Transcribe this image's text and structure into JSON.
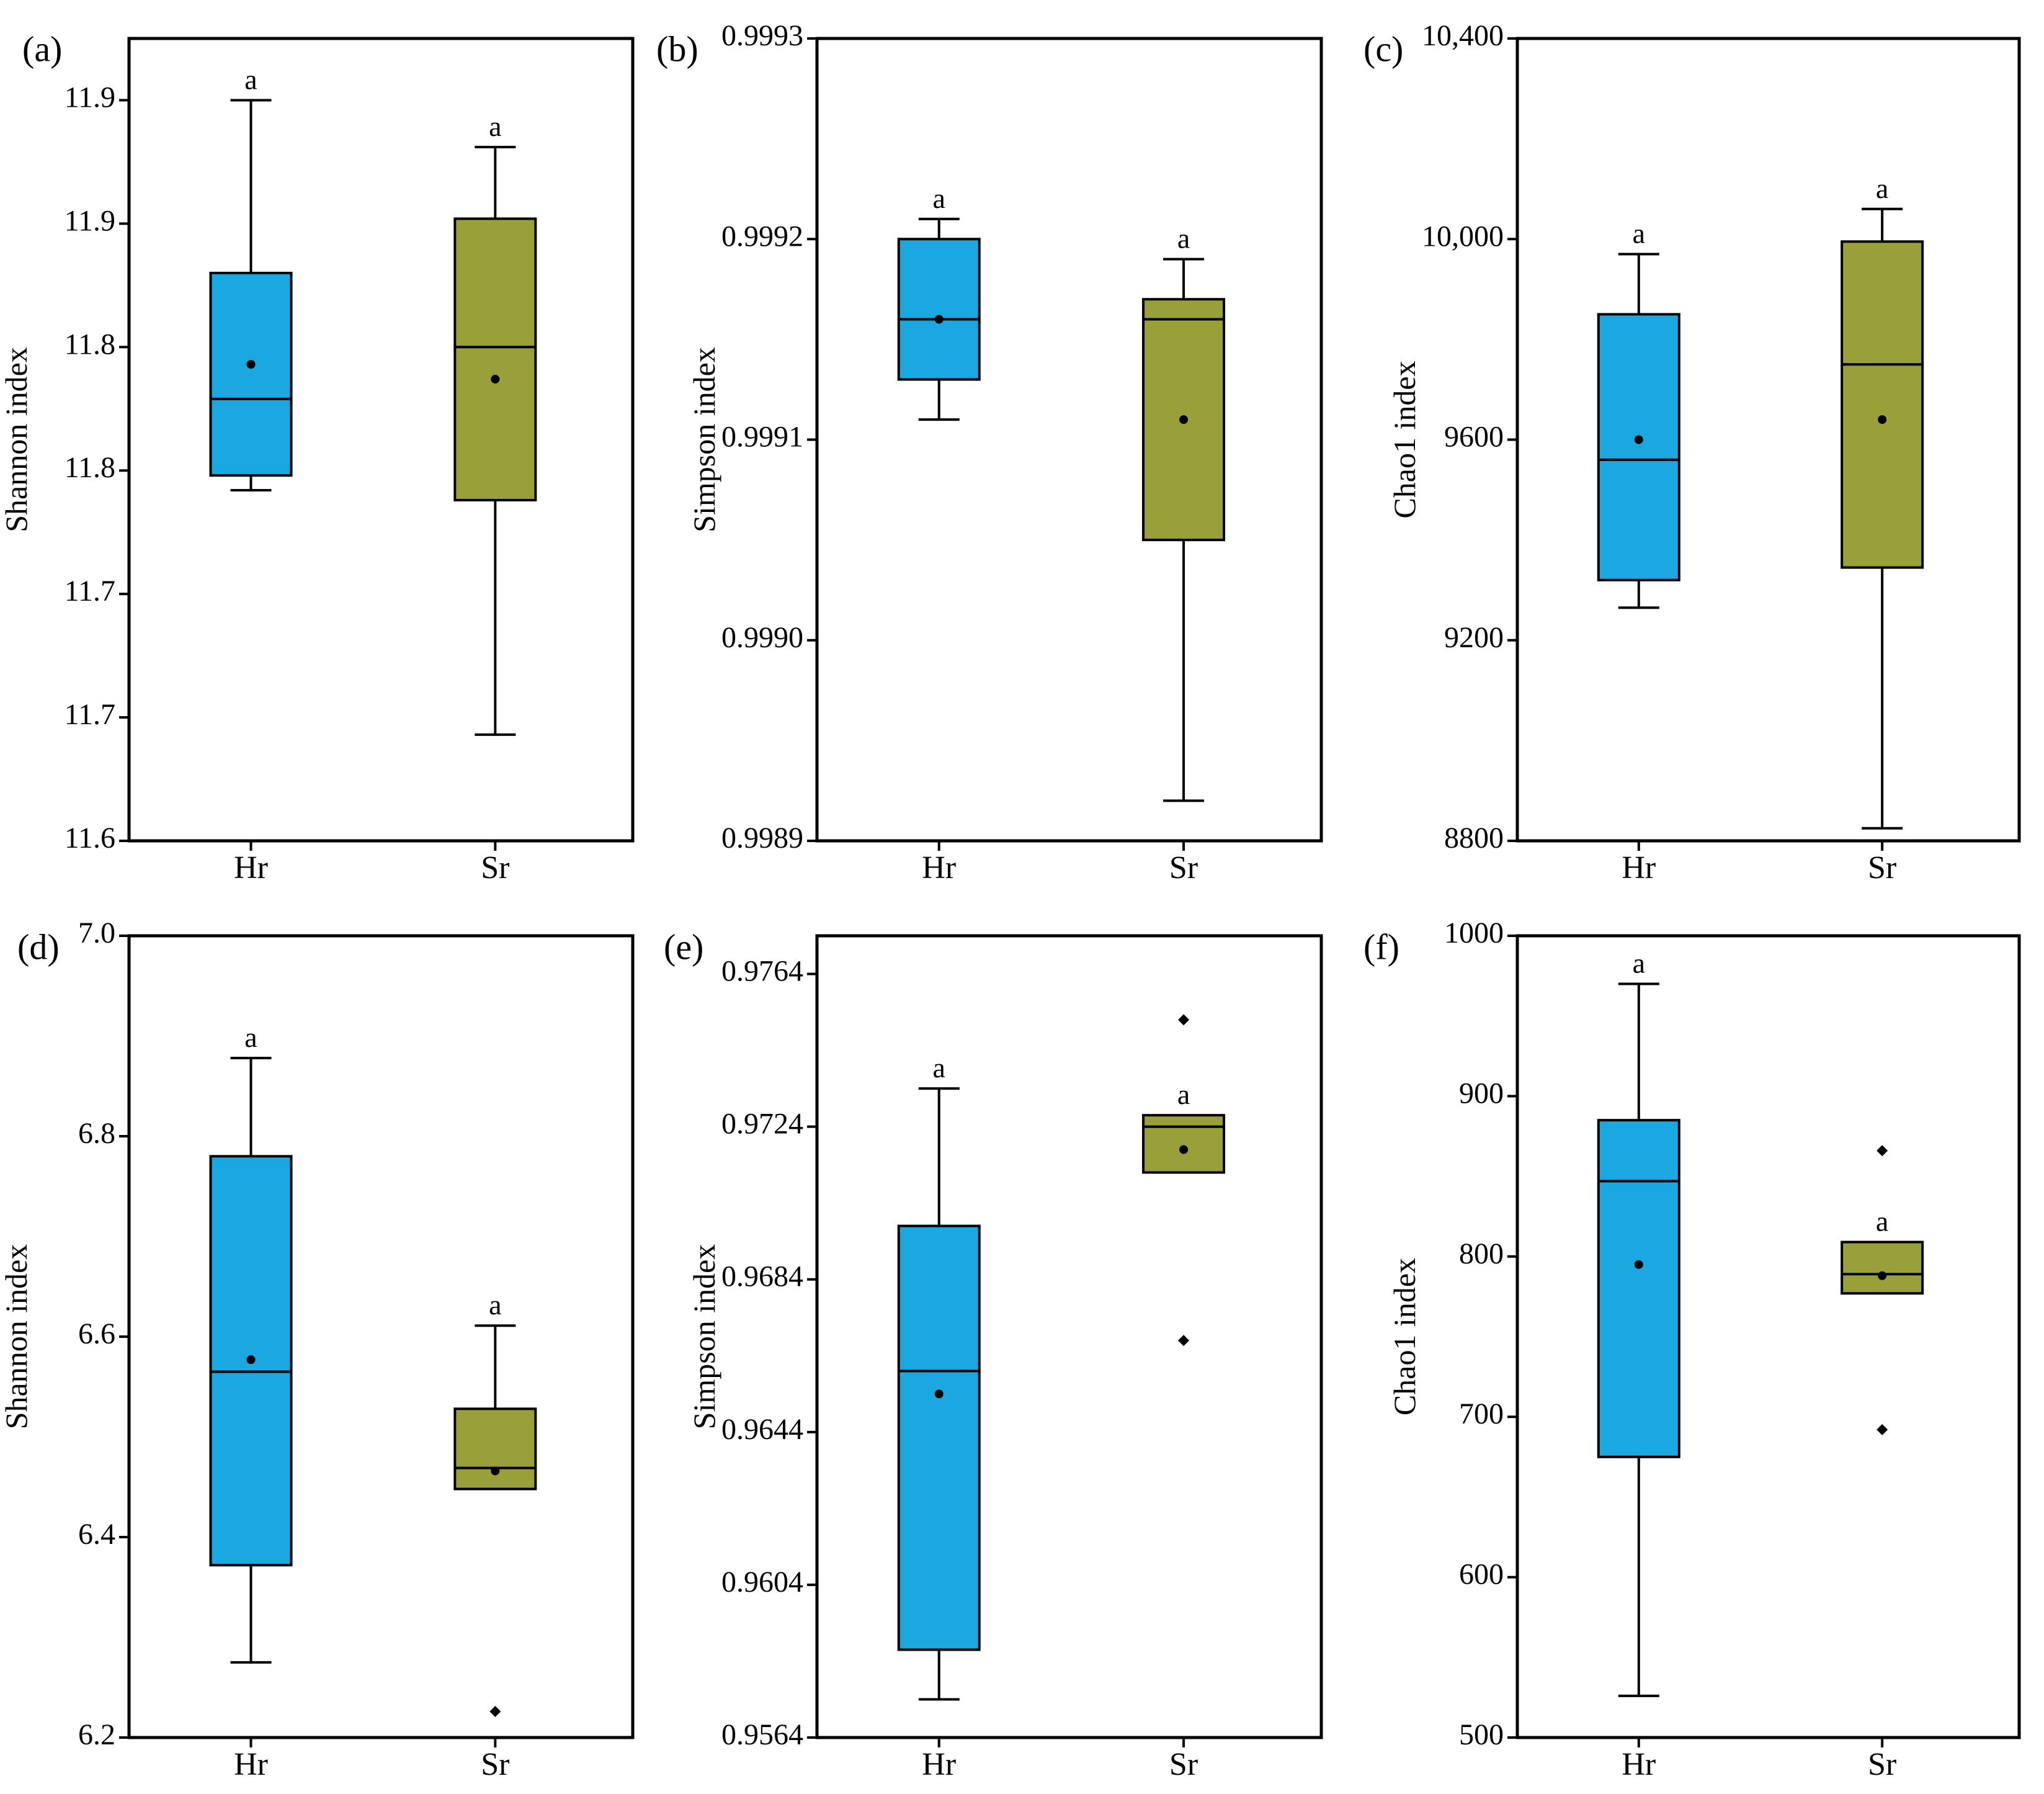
{
  "colors": {
    "Hr": "#1ba7df",
    "Sr": "#9aa039",
    "stroke": "#000000"
  },
  "chart_data": [
    {
      "type": "box",
      "panel": "(a)",
      "ylabel": "Shannon index",
      "categories": [
        "Hr",
        "Sr"
      ],
      "ylim": [
        11.6,
        11.925
      ],
      "yticks": [
        11.6,
        11.65,
        11.7,
        11.75,
        11.8,
        11.85,
        11.9
      ],
      "ytick_labels": [
        "11.6",
        "11.7",
        "11.7",
        "11.8",
        "11.8",
        "11.9",
        "11.9"
      ],
      "boxes": [
        {
          "name": "Hr",
          "whisker_low": 11.742,
          "q1": 11.748,
          "median": 11.779,
          "q3": 11.83,
          "whisker_high": 11.9,
          "mean": 11.793,
          "outliers": [],
          "sig": "a"
        },
        {
          "name": "Sr",
          "whisker_low": 11.643,
          "q1": 11.738,
          "median": 11.8,
          "q3": 11.852,
          "whisker_high": 11.881,
          "mean": 11.787,
          "outliers": [],
          "sig": "a"
        }
      ]
    },
    {
      "type": "box",
      "panel": "(b)",
      "ylabel": "Simpson index",
      "categories": [
        "Hr",
        "Sr"
      ],
      "ylim": [
        0.9989,
        0.9993
      ],
      "yticks": [
        0.9989,
        0.999,
        0.9991,
        0.9992,
        0.9993
      ],
      "ytick_labels": [
        "0.9989",
        "0.9990",
        "0.9991",
        "0.9992",
        "0.9993"
      ],
      "boxes": [
        {
          "name": "Hr",
          "whisker_low": 0.99911,
          "q1": 0.99913,
          "median": 0.99916,
          "q3": 0.9992,
          "whisker_high": 0.99921,
          "mean": 0.99916,
          "outliers": [],
          "sig": "a"
        },
        {
          "name": "Sr",
          "whisker_low": 0.99892,
          "q1": 0.99905,
          "median": 0.99916,
          "q3": 0.99917,
          "whisker_high": 0.99919,
          "mean": 0.99911,
          "outliers": [],
          "sig": "a"
        }
      ]
    },
    {
      "type": "box",
      "panel": "(c)",
      "ylabel": "Chao1 index",
      "categories": [
        "Hr",
        "Sr"
      ],
      "ylim": [
        8800,
        10400
      ],
      "yticks": [
        8800,
        9200,
        9600,
        10000,
        10400
      ],
      "ytick_labels": [
        "8800",
        "9200",
        "9600",
        "10,000",
        "10,400"
      ],
      "boxes": [
        {
          "name": "Hr",
          "whisker_low": 9265,
          "q1": 9320,
          "median": 9560,
          "q3": 9850,
          "whisker_high": 9970,
          "mean": 9600,
          "outliers": [],
          "sig": "a"
        },
        {
          "name": "Sr",
          "whisker_low": 8825,
          "q1": 9345,
          "median": 9750,
          "q3": 9995,
          "whisker_high": 10060,
          "mean": 9640,
          "outliers": [],
          "sig": "a"
        }
      ]
    },
    {
      "type": "box",
      "panel": "(d)",
      "ylabel": "Shannon index",
      "categories": [
        "Hr",
        "Sr"
      ],
      "ylim": [
        6.2,
        7.0
      ],
      "yticks": [
        6.2,
        6.4,
        6.6,
        6.8,
        7.0
      ],
      "ytick_labels": [
        "6.2",
        "6.4",
        "6.6",
        "6.8",
        "7.0"
      ],
      "boxes": [
        {
          "name": "Hr",
          "whisker_low": 6.275,
          "q1": 6.372,
          "median": 6.565,
          "q3": 6.78,
          "whisker_high": 6.878,
          "mean": 6.577,
          "outliers": [],
          "sig": "a"
        },
        {
          "name": "Sr",
          "whisker_low": null,
          "q1": 6.448,
          "median": 6.469,
          "q3": 6.528,
          "whisker_high": 6.611,
          "mean": 6.466,
          "outliers": [
            6.226
          ],
          "sig": "a"
        }
      ]
    },
    {
      "type": "box",
      "panel": "(e)",
      "ylabel": "Simpson index",
      "categories": [
        "Hr",
        "Sr"
      ],
      "ylim": [
        0.9564,
        0.9774
      ],
      "yticks": [
        0.9564,
        0.9604,
        0.9644,
        0.9684,
        0.9724,
        0.9764
      ],
      "ytick_labels": [
        "0.9564",
        "0.9604",
        "0.9644",
        "0.9684",
        "0.9724",
        "0.9764"
      ],
      "boxes": [
        {
          "name": "Hr",
          "whisker_low": 0.9574,
          "q1": 0.9587,
          "median": 0.966,
          "q3": 0.9698,
          "whisker_high": 0.9734,
          "mean": 0.9654,
          "outliers": [],
          "sig": "a"
        },
        {
          "name": "Sr",
          "whisker_low": null,
          "q1": 0.9712,
          "median": 0.9724,
          "q3": 0.9727,
          "whisker_high": null,
          "mean": 0.9718,
          "outliers": [
            0.9752,
            0.9668
          ],
          "sig": "a"
        }
      ]
    },
    {
      "type": "box",
      "panel": "(f)",
      "ylabel": "Chao1 index",
      "categories": [
        "Hr",
        "Sr"
      ],
      "ylim": [
        500,
        1000
      ],
      "yticks": [
        500,
        600,
        700,
        800,
        900,
        1000
      ],
      "ytick_labels": [
        "500",
        "600",
        "700",
        "800",
        "900",
        "1000"
      ],
      "boxes": [
        {
          "name": "Hr",
          "whisker_low": 526,
          "q1": 675,
          "median": 847,
          "q3": 885,
          "whisker_high": 970,
          "mean": 795,
          "outliers": [],
          "sig": "a"
        },
        {
          "name": "Sr",
          "whisker_low": null,
          "q1": 777,
          "median": 789,
          "q3": 809,
          "whisker_high": null,
          "mean": 788,
          "outliers": [
            866,
            692
          ],
          "sig": "a"
        }
      ]
    }
  ]
}
